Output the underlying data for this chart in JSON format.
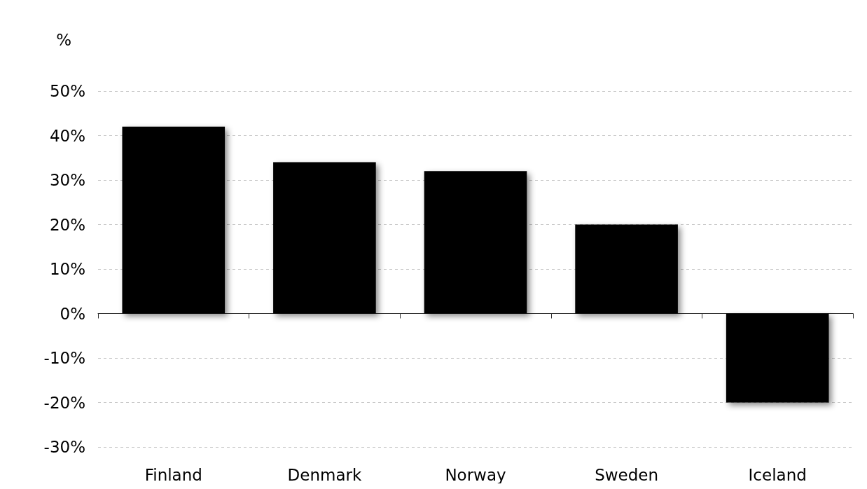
{
  "chart_data": {
    "type": "bar",
    "ylabel": "%",
    "categories": [
      "Finland",
      "Denmark",
      "Norway",
      "Sweden",
      "Iceland"
    ],
    "values": [
      42,
      34,
      32,
      20,
      -20
    ],
    "color": "#000000",
    "ylim": [
      -30,
      50
    ],
    "yticks": [
      {
        "value": -30,
        "label": "-30%"
      },
      {
        "value": -20,
        "label": "-20%"
      },
      {
        "value": -10,
        "label": "-10%"
      },
      {
        "value": 0,
        "label": "0%"
      },
      {
        "value": 10,
        "label": "10%"
      },
      {
        "value": 20,
        "label": "20%"
      },
      {
        "value": 30,
        "label": "30%"
      },
      {
        "value": 40,
        "label": "40%"
      },
      {
        "value": 50,
        "label": "50%"
      }
    ],
    "grid": "y"
  }
}
